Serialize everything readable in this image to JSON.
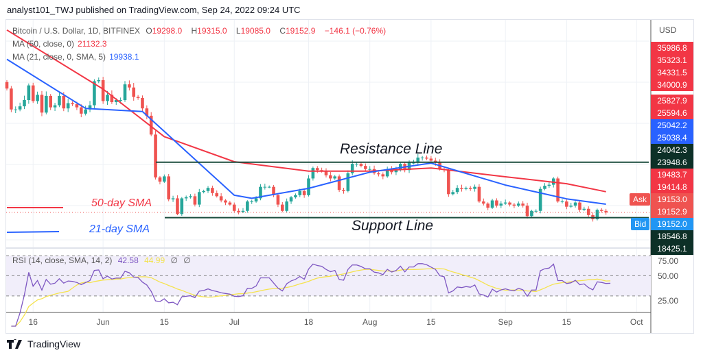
{
  "header": {
    "published": "analyst101_TWJ published on TradingView.com, Sep 24, 2022 09:24 UTC"
  },
  "legend": {
    "symbol": "Bitcoin / U.S. Dollar, 1D, BITFINEX",
    "open_label": "O",
    "open": "19298.0",
    "high_label": "H",
    "high": "19315.0",
    "low_label": "L",
    "low": "19085.0",
    "close_label": "C",
    "close": "19152.9",
    "change": "−146.1 (−0.76%)",
    "ma50_label": "MA (50, close, 0)",
    "ma50_value": "21132.3",
    "ma21_label": "MA (21, close, 0, SMA, 5)",
    "ma21_value": "19938.1",
    "rsi_label": "RSI (14, close, SMA, 14, 2)",
    "rsi_value": "42.58",
    "rsi_sma_value": "44.99",
    "rsi_extra1": "∅",
    "rsi_extra2": "∅"
  },
  "price_axis": {
    "currency": "USD",
    "tags": [
      {
        "value": "35986.8",
        "color": "#f23645"
      },
      {
        "value": "35323.1",
        "color": "#f23645"
      },
      {
        "value": "34331.5",
        "color": "#f23645"
      },
      {
        "value": "34000.9",
        "color": "#f23645"
      },
      {
        "value": "25827.9",
        "color": "#f23645"
      },
      {
        "value": "25594.6",
        "color": "#f23645"
      },
      {
        "value": "25042.2",
        "color": "#2962ff"
      },
      {
        "value": "25038.4",
        "color": "#2962ff"
      },
      {
        "value": "24042.3",
        "color": "#0d3027"
      },
      {
        "value": "23948.6",
        "color": "#0d3027"
      },
      {
        "value": "19483.7",
        "color": "#f23645"
      },
      {
        "value": "19414.8",
        "color": "#f23645"
      },
      {
        "value": "19153.0",
        "color": "#ef5350"
      },
      {
        "value": "19152.9",
        "color": "#ef5350"
      },
      {
        "value": "19152.0",
        "color": "#2196f3"
      },
      {
        "value": "18546.8",
        "color": "#0d3027"
      },
      {
        "value": "18425.1",
        "color": "#0d3027"
      }
    ],
    "ask_label": "Ask",
    "bid_label": "Bid"
  },
  "rsi_axis": [
    "75.00",
    "50.00",
    "25.00"
  ],
  "time_axis": [
    {
      "label": "16",
      "date": "2022-05-16"
    },
    {
      "label": "Jun",
      "date": "2022-06-01"
    },
    {
      "label": "15",
      "date": "2022-06-15"
    },
    {
      "label": "Jul",
      "date": "2022-07-01"
    },
    {
      "label": "18",
      "date": "2022-07-18"
    },
    {
      "label": "Aug",
      "date": "2022-08-01"
    },
    {
      "label": "15",
      "date": "2022-08-15"
    },
    {
      "label": "Sep",
      "date": "2022-09-01"
    },
    {
      "label": "15",
      "date": "2022-09-15"
    },
    {
      "label": "Oct",
      "date": "2022-10-01"
    }
  ],
  "annotations": {
    "resistance": "Resistance Line",
    "support": "Support Line",
    "sma50": "50-day SMA",
    "sma21": "21-day SMA"
  },
  "footer": {
    "brand": "TradingView"
  },
  "colors": {
    "up": "#26a69a",
    "down": "#ef5350",
    "ma50": "#f23645",
    "ma21": "#2962ff",
    "level_line": "#1b4d3e",
    "rsi": "#7e57c2",
    "rsi_sma": "#f5e34d"
  },
  "chart_data": {
    "type": "candlestick",
    "first_date": "2022-05-10",
    "closes": [
      31000,
      29000,
      29000,
      29300,
      29900,
      31300,
      29800,
      30400,
      28700,
      30300,
      29200,
      29400,
      30300,
      29100,
      29600,
      29500,
      29200,
      28600,
      29000,
      29400,
      31700,
      31800,
      29800,
      30400,
      29700,
      29900,
      29900,
      31400,
      31100,
      30200,
      30100,
      29100,
      28400,
      26600,
      22500,
      22100,
      22600,
      20400,
      20500,
      19000,
      20500,
      20600,
      20700,
      19900,
      21100,
      21200,
      21500,
      21000,
      20700,
      20300,
      20100,
      19900,
      19300,
      19200,
      19300,
      20200,
      20200,
      20500,
      21600,
      21600,
      21600,
      20800,
      19900,
      19300,
      20200,
      20600,
      20800,
      21200,
      20800,
      22400,
      23400,
      23200,
      23100,
      22700,
      22400,
      22600,
      21300,
      21200,
      22900,
      23800,
      23800,
      23600,
      23300,
      23300,
      22900,
      22800,
      22600,
      23300,
      23000,
      23200,
      23800,
      23200,
      23900,
      23900,
      24400,
      24400,
      24300,
      24100,
      23900,
      23300,
      23200,
      20900,
      21100,
      21500,
      21400,
      21500,
      21400,
      21600,
      20200,
      20000,
      19600,
      20300,
      19800,
      20000,
      20100,
      19900,
      19800,
      20000,
      19800,
      18800,
      19300,
      19300,
      21400,
      21700,
      21800,
      22400,
      20200,
      20200,
      19700,
      19800,
      20100,
      19400,
      19500,
      18900,
      18500,
      19400,
      19300,
      19152.9
    ],
    "ma50": [
      [
        "2022-05-10",
        36600
      ],
      [
        "2022-06-01",
        30950
      ],
      [
        "2022-06-15",
        26400
      ],
      [
        "2022-07-01",
        24000
      ],
      [
        "2022-07-18",
        23100
      ],
      [
        "2022-08-01",
        23100
      ],
      [
        "2022-08-15",
        23400
      ],
      [
        "2022-09-01",
        22560
      ],
      [
        "2022-09-15",
        21900
      ],
      [
        "2022-09-24",
        21132.3
      ]
    ],
    "ma21": [
      [
        "2022-05-10",
        33800
      ],
      [
        "2022-05-28",
        29100
      ],
      [
        "2022-06-10",
        28800
      ],
      [
        "2022-06-15",
        26900
      ],
      [
        "2022-07-01",
        20800
      ],
      [
        "2022-07-05",
        20500
      ],
      [
        "2022-07-18",
        21450
      ],
      [
        "2022-08-01",
        23000
      ],
      [
        "2022-08-15",
        23870
      ],
      [
        "2022-09-01",
        21770
      ],
      [
        "2022-09-15",
        20450
      ],
      [
        "2022-09-24",
        19938.1
      ]
    ],
    "resistance_level": 23950,
    "support_level": 18650,
    "current_price": 19152.9,
    "rsi_levels": [
      70,
      50,
      30
    ],
    "rsi_last": 42.58,
    "rsi_sma_last": 44.99
  }
}
